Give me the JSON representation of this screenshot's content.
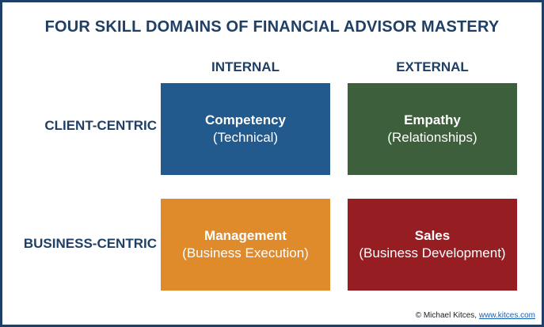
{
  "title": "FOUR SKILL DOMAINS OF FINANCIAL ADVISOR MASTERY",
  "columns": [
    "INTERNAL",
    "EXTERNAL"
  ],
  "rows": [
    "CLIENT-CENTRIC",
    "BUSINESS-CENTRIC"
  ],
  "quadrants": [
    {
      "name": "Competency",
      "sub": "(Technical)",
      "color": "#225a8e"
    },
    {
      "name": "Empathy",
      "sub": "(Relationships)",
      "color": "#3d5f3b"
    },
    {
      "name": "Management",
      "sub": "(Business Execution)",
      "color": "#df8a2b"
    },
    {
      "name": "Sales",
      "sub": "(Business Development)",
      "color": "#961e22"
    }
  ],
  "credit": {
    "text": "© Michael Kitces,",
    "link": "www.kitces.com"
  }
}
